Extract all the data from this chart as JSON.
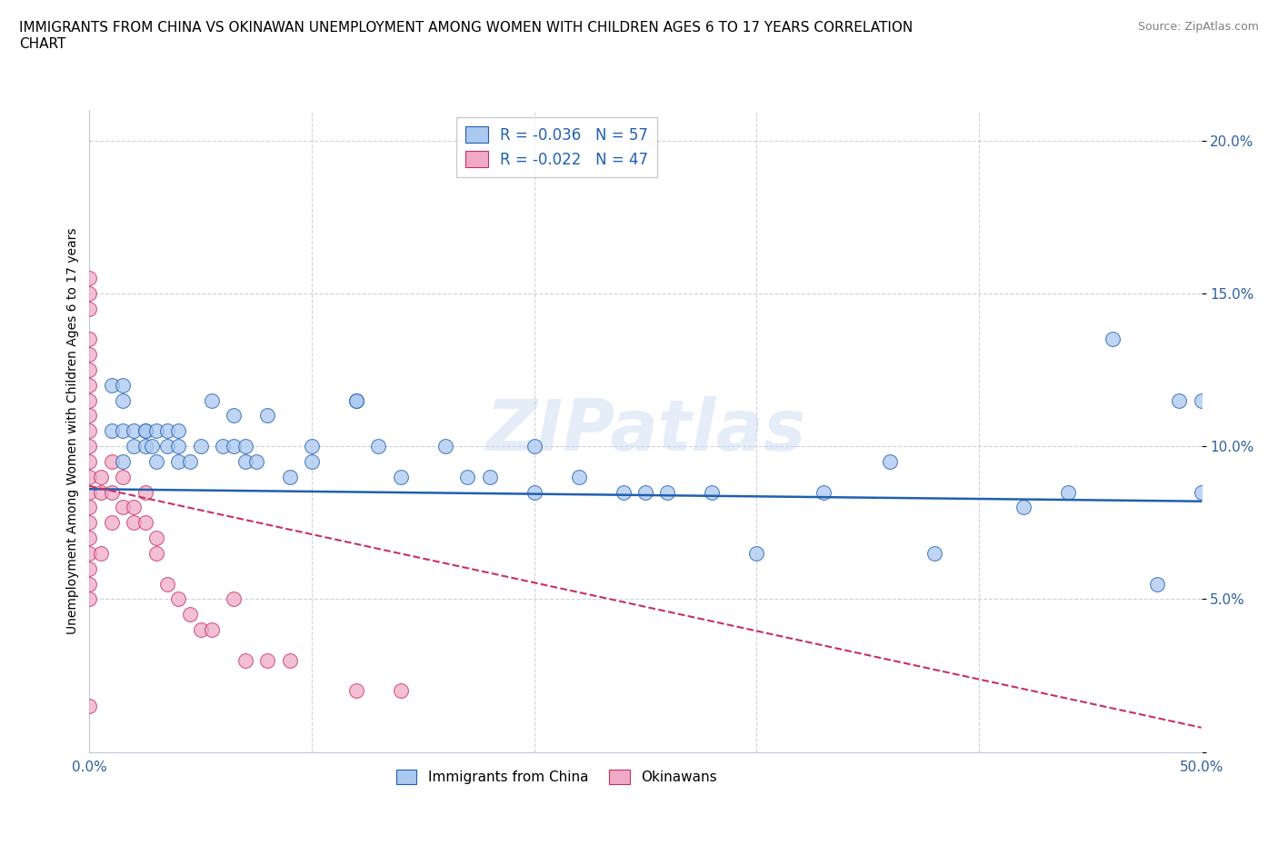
{
  "title": "IMMIGRANTS FROM CHINA VS OKINAWAN UNEMPLOYMENT AMONG WOMEN WITH CHILDREN AGES 6 TO 17 YEARS CORRELATION\nCHART",
  "source": "Source: ZipAtlas.com",
  "ylabel": "Unemployment Among Women with Children Ages 6 to 17 years",
  "xlim": [
    0.0,
    0.5
  ],
  "ylim": [
    0.0,
    0.21
  ],
  "blue_R": "-0.036",
  "blue_N": "57",
  "pink_R": "-0.022",
  "pink_N": "47",
  "blue_color": "#aac8f0",
  "pink_color": "#f0aac8",
  "blue_line_color": "#2060b0",
  "pink_line_color": "#c83060",
  "watermark": "ZIPatlas",
  "blue_scatter_x": [
    0.01,
    0.01,
    0.015,
    0.015,
    0.015,
    0.015,
    0.02,
    0.02,
    0.025,
    0.025,
    0.025,
    0.028,
    0.03,
    0.03,
    0.035,
    0.035,
    0.04,
    0.04,
    0.04,
    0.045,
    0.05,
    0.055,
    0.06,
    0.065,
    0.065,
    0.07,
    0.07,
    0.075,
    0.08,
    0.09,
    0.1,
    0.1,
    0.12,
    0.12,
    0.13,
    0.14,
    0.16,
    0.17,
    0.18,
    0.2,
    0.2,
    0.22,
    0.24,
    0.25,
    0.26,
    0.28,
    0.3,
    0.33,
    0.36,
    0.38,
    0.42,
    0.44,
    0.46,
    0.48,
    0.49,
    0.5,
    0.5
  ],
  "blue_scatter_y": [
    0.12,
    0.105,
    0.12,
    0.115,
    0.105,
    0.095,
    0.1,
    0.105,
    0.105,
    0.1,
    0.105,
    0.1,
    0.105,
    0.095,
    0.105,
    0.1,
    0.1,
    0.095,
    0.105,
    0.095,
    0.1,
    0.115,
    0.1,
    0.1,
    0.11,
    0.095,
    0.1,
    0.095,
    0.11,
    0.09,
    0.095,
    0.1,
    0.115,
    0.115,
    0.1,
    0.09,
    0.1,
    0.09,
    0.09,
    0.1,
    0.085,
    0.09,
    0.085,
    0.085,
    0.085,
    0.085,
    0.065,
    0.085,
    0.095,
    0.065,
    0.08,
    0.085,
    0.135,
    0.055,
    0.115,
    0.085,
    0.115
  ],
  "pink_scatter_x": [
    0.0,
    0.0,
    0.0,
    0.0,
    0.0,
    0.0,
    0.0,
    0.0,
    0.0,
    0.0,
    0.0,
    0.0,
    0.0,
    0.0,
    0.0,
    0.0,
    0.0,
    0.0,
    0.0,
    0.0,
    0.0,
    0.0,
    0.005,
    0.005,
    0.005,
    0.01,
    0.01,
    0.01,
    0.015,
    0.015,
    0.02,
    0.02,
    0.025,
    0.025,
    0.03,
    0.03,
    0.035,
    0.04,
    0.045,
    0.05,
    0.055,
    0.065,
    0.07,
    0.08,
    0.09,
    0.12,
    0.14
  ],
  "pink_scatter_y": [
    0.155,
    0.15,
    0.145,
    0.135,
    0.13,
    0.125,
    0.12,
    0.115,
    0.11,
    0.105,
    0.1,
    0.095,
    0.09,
    0.085,
    0.08,
    0.075,
    0.07,
    0.065,
    0.06,
    0.055,
    0.05,
    0.015,
    0.09,
    0.085,
    0.065,
    0.095,
    0.085,
    0.075,
    0.09,
    0.08,
    0.08,
    0.075,
    0.085,
    0.075,
    0.07,
    0.065,
    0.055,
    0.05,
    0.045,
    0.04,
    0.04,
    0.05,
    0.03,
    0.03,
    0.03,
    0.02,
    0.02
  ],
  "blue_trend_x0": 0.0,
  "blue_trend_y0": 0.086,
  "blue_trend_x1": 0.5,
  "blue_trend_y1": 0.082,
  "pink_trend_x0": 0.0,
  "pink_trend_y0": 0.087,
  "pink_trend_x1": 0.5,
  "pink_trend_y1": 0.008
}
